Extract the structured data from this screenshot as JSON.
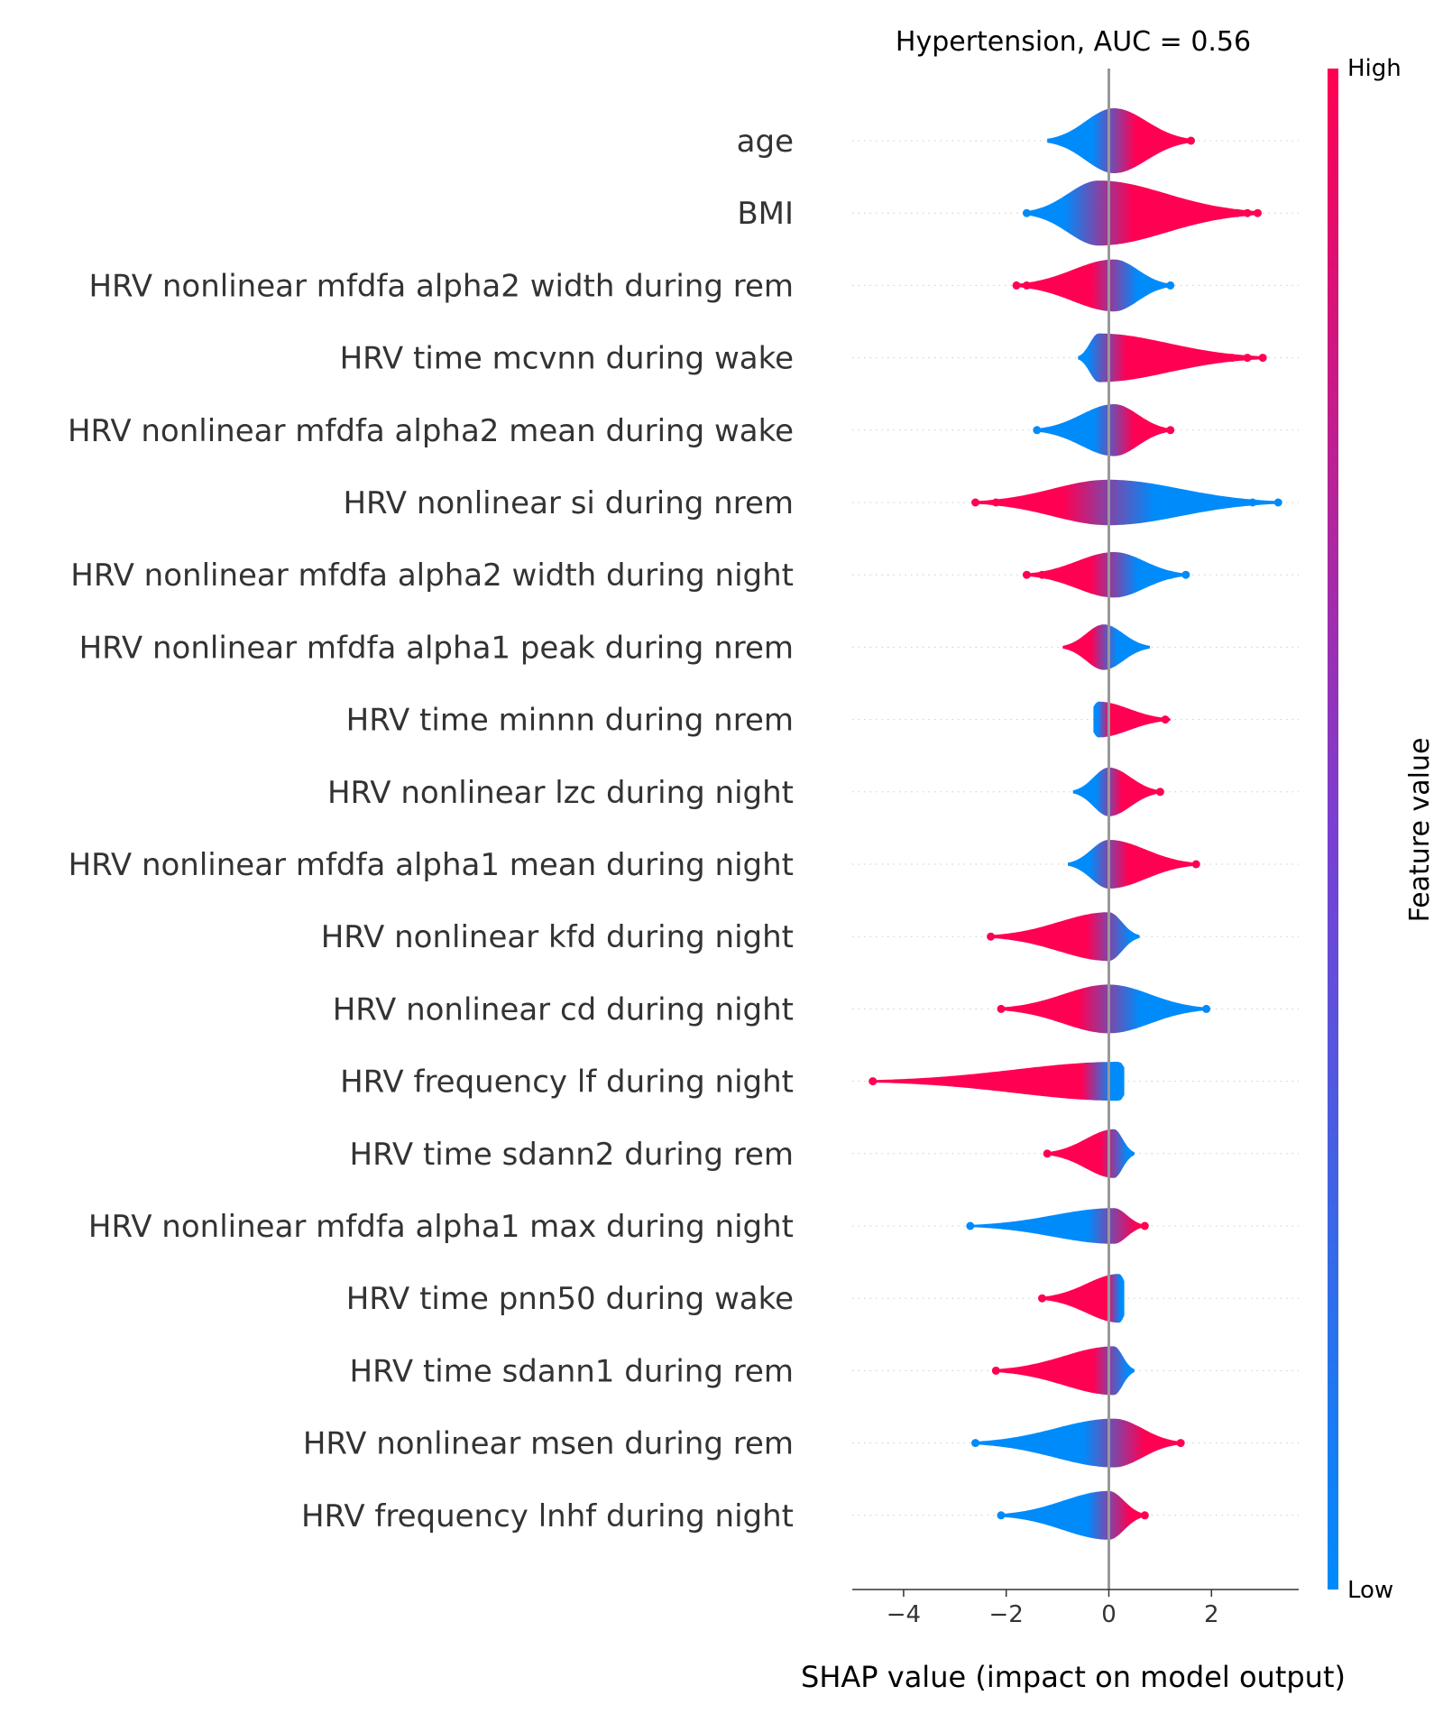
{
  "chart_data": {
    "type": "violin",
    "title": "Hypertension, AUC =  0.56",
    "xlabel": "SHAP value (impact on model output)",
    "xlim": [
      -5.0,
      3.7
    ],
    "xticks": [
      -4,
      -2,
      0,
      2
    ],
    "xtick_labels": [
      "−4",
      "−2",
      "0",
      "2"
    ],
    "zero_line": 0,
    "colorbar": {
      "label": "Feature value",
      "high_label": "High",
      "low_label": "Low",
      "high_color": "#ff0052",
      "low_color": "#008bfb"
    },
    "features": [
      {
        "name": "age",
        "min": -1.2,
        "max": 1.6,
        "peak": 0.1,
        "width": 1.0,
        "skew": 0.9,
        "color_trend": "high_right",
        "outliers_low": [],
        "outliers_high": [
          1.6
        ]
      },
      {
        "name": "BMI",
        "min": -1.6,
        "max": 2.9,
        "peak": -0.2,
        "width": 1.0,
        "skew": 1.0,
        "color_trend": "high_right",
        "outliers_low": [
          -1.6
        ],
        "outliers_high": [
          2.1,
          2.3,
          2.5,
          2.7,
          2.9
        ]
      },
      {
        "name": "HRV nonlinear mfdfa alpha2 width during rem",
        "min": -1.8,
        "max": 1.2,
        "peak": 0.1,
        "width": 0.8,
        "skew": 0.2,
        "color_trend": "low_right",
        "outliers_low": [
          -1.8,
          -1.6,
          -1.4
        ],
        "outliers_high": [
          1.2
        ]
      },
      {
        "name": "HRV time mcvnn during wake",
        "min": -0.6,
        "max": 3.0,
        "peak": -0.2,
        "width": 0.75,
        "skew": 1.2,
        "color_trend": "high_right",
        "outliers_low": [],
        "outliers_high": [
          2.2,
          2.4,
          2.7,
          3.0
        ]
      },
      {
        "name": "HRV nonlinear mfdfa alpha2 mean during wake",
        "min": -1.4,
        "max": 1.2,
        "peak": 0.1,
        "width": 0.8,
        "skew": 0.2,
        "color_trend": "high_right",
        "outliers_low": [
          -1.4
        ],
        "outliers_high": [
          1.2
        ]
      },
      {
        "name": "HRV nonlinear si during nrem",
        "min": -2.6,
        "max": 3.3,
        "peak": 0.0,
        "width": 0.7,
        "skew": 0.3,
        "color_trend": "low_right",
        "outliers_low": [
          -2.6,
          -2.2,
          -1.7
        ],
        "outliers_high": [
          1.8,
          2.2,
          2.8,
          3.3
        ]
      },
      {
        "name": "HRV nonlinear mfdfa alpha2 width during night",
        "min": -1.6,
        "max": 1.5,
        "peak": 0.1,
        "width": 0.7,
        "skew": 0.2,
        "color_trend": "low_right",
        "outliers_low": [
          -1.6,
          -1.3
        ],
        "outliers_high": [
          1.2,
          1.5
        ]
      },
      {
        "name": "HRV nonlinear mfdfa alpha1 peak during nrem",
        "min": -0.9,
        "max": 0.8,
        "peak": -0.1,
        "width": 0.7,
        "skew": 0.1,
        "color_trend": "low_right",
        "outliers_low": [],
        "outliers_high": []
      },
      {
        "name": "HRV time minnn during nrem",
        "min": -0.3,
        "max": 1.2,
        "peak": -0.2,
        "width": 0.55,
        "skew": 0.8,
        "color_trend": "high_right",
        "outliers_low": [],
        "outliers_high": [
          1.1
        ]
      },
      {
        "name": "HRV nonlinear lzc during night",
        "min": -0.7,
        "max": 1.0,
        "peak": 0.0,
        "width": 0.75,
        "skew": 0.3,
        "color_trend": "high_right",
        "outliers_low": [],
        "outliers_high": [
          1.0
        ]
      },
      {
        "name": "HRV nonlinear mfdfa alpha1 mean during night",
        "min": -0.8,
        "max": 1.7,
        "peak": 0.0,
        "width": 0.75,
        "skew": 0.5,
        "color_trend": "high_right",
        "outliers_low": [],
        "outliers_high": [
          1.3,
          1.7
        ]
      },
      {
        "name": "HRV nonlinear kfd during night",
        "min": -2.3,
        "max": 0.6,
        "peak": 0.0,
        "width": 0.75,
        "skew": -0.3,
        "color_trend": "low_right",
        "outliers_low": [
          -2.3,
          -1.7,
          -1.4
        ],
        "outliers_high": []
      },
      {
        "name": "HRV nonlinear cd during night",
        "min": -2.1,
        "max": 1.9,
        "peak": 0.0,
        "width": 0.75,
        "skew": 0.2,
        "color_trend": "low_right",
        "outliers_low": [
          -2.1,
          -1.5,
          -1.2
        ],
        "outliers_high": [
          1.5,
          1.9
        ]
      },
      {
        "name": "HRV frequency lf during night",
        "min": -4.6,
        "max": 0.3,
        "peak": 0.2,
        "width": 0.6,
        "skew": -0.8,
        "color_trend": "low_right",
        "outliers_low": [
          -4.6,
          -2.7,
          -2.3,
          -2.0
        ],
        "outliers_high": []
      },
      {
        "name": "HRV time sdann2 during rem",
        "min": -1.2,
        "max": 0.5,
        "peak": 0.1,
        "width": 0.75,
        "skew": -0.2,
        "color_trend": "low_right",
        "outliers_low": [
          -1.2
        ],
        "outliers_high": []
      },
      {
        "name": "HRV nonlinear mfdfa alpha1 max during night",
        "min": -2.7,
        "max": 0.7,
        "peak": 0.1,
        "width": 0.55,
        "skew": -0.4,
        "color_trend": "high_right",
        "outliers_low": [
          -2.7,
          -1.7
        ],
        "outliers_high": [
          0.7
        ]
      },
      {
        "name": "HRV time pnn50 during wake",
        "min": -1.3,
        "max": 0.3,
        "peak": 0.2,
        "width": 0.75,
        "skew": -0.3,
        "color_trend": "low_right",
        "outliers_low": [
          -1.3
        ],
        "outliers_high": []
      },
      {
        "name": "HRV time sdann1 during rem",
        "min": -2.2,
        "max": 0.5,
        "peak": 0.1,
        "width": 0.75,
        "skew": -0.3,
        "color_trend": "low_right",
        "outliers_low": [
          -2.2,
          -1.7,
          -1.2
        ],
        "outliers_high": []
      },
      {
        "name": "HRV nonlinear msen during rem",
        "min": -2.6,
        "max": 1.4,
        "peak": 0.1,
        "width": 0.75,
        "skew": -0.2,
        "color_trend": "high_right",
        "outliers_low": [
          -2.6,
          -1.7,
          -1.2
        ],
        "outliers_high": [
          1.4
        ]
      },
      {
        "name": "HRV frequency lnhf during night",
        "min": -2.1,
        "max": 0.7,
        "peak": 0.0,
        "width": 0.75,
        "skew": -0.2,
        "color_trend": "high_right",
        "outliers_low": [
          -2.1,
          -1.5,
          -1.3
        ],
        "outliers_high": [
          0.7
        ]
      }
    ]
  }
}
